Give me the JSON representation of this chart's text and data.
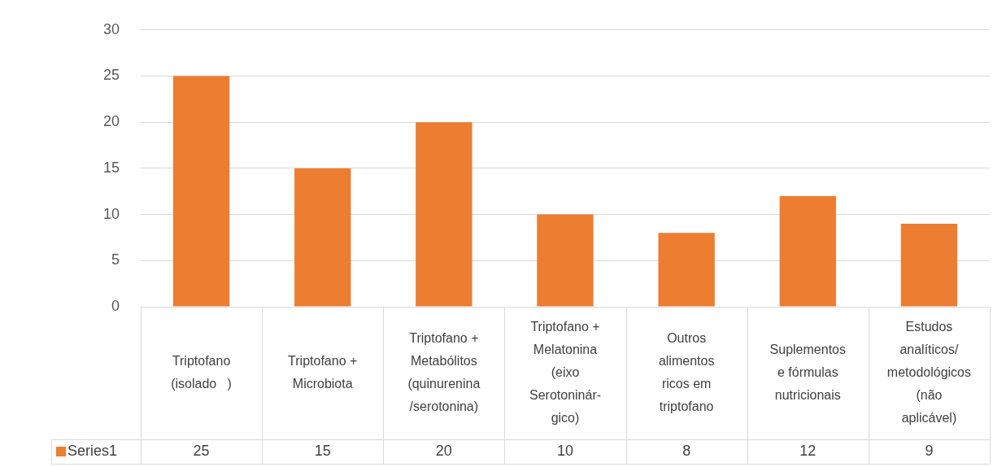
{
  "chart_data": {
    "type": "bar",
    "categories": [
      "Triptofano\n(isolado   )",
      "Triptofano +\nMicrobiota",
      "Triptofano +\nMetabólitos\n(quinurenina\n/serotonina)",
      "Triptofano +\nMelatonina\n(eixo\nSerotoninár-\ngico)",
      "Outros\nalimentos\nricos em\ntriptofano",
      "Suplementos\ne fórmulas\nnutricionais",
      "Estudos\nanalíticos/\nmetodológicos\n(não\naplicável)"
    ],
    "series": [
      {
        "name": "Series1",
        "color": "#ed7d31",
        "values": [
          25,
          15,
          20,
          10,
          8,
          12,
          9
        ]
      }
    ],
    "ylim": [
      0,
      30
    ],
    "yticks": [
      0,
      5,
      10,
      15,
      20,
      25,
      30
    ],
    "grid": "y",
    "legend": "bottom",
    "data_labels": true
  }
}
